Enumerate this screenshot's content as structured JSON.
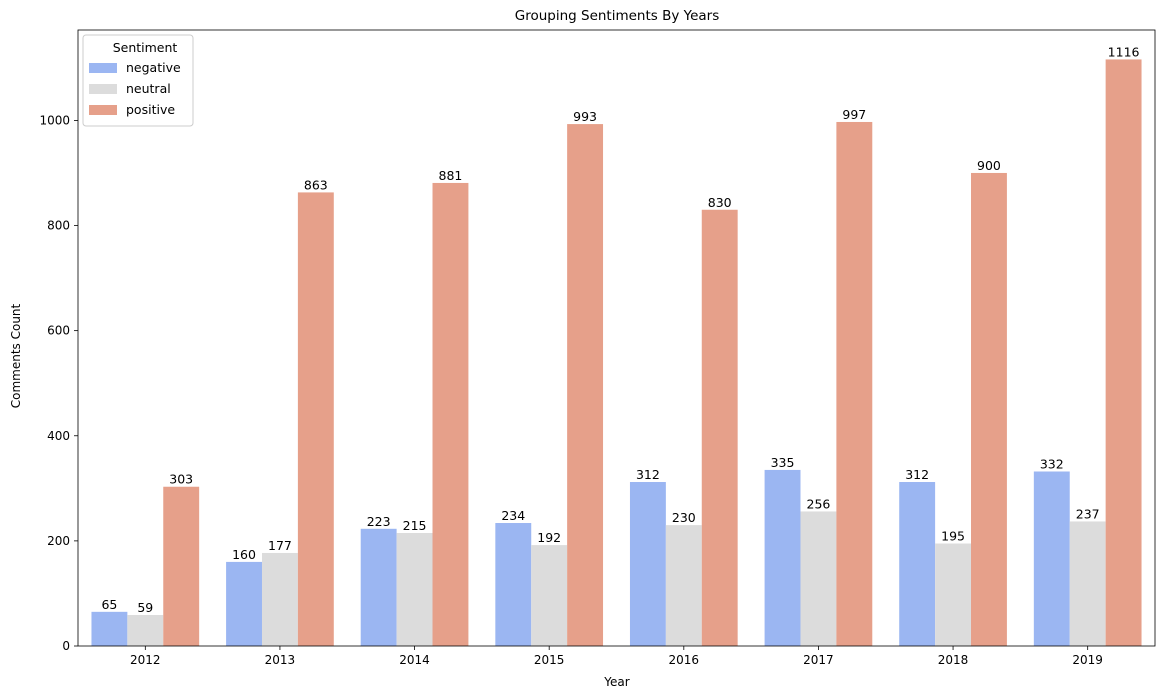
{
  "chart_data": {
    "type": "bar",
    "title": "Grouping Sentiments By Years",
    "xlabel": "Year",
    "ylabel": "Comments Count",
    "categories": [
      "2012",
      "2013",
      "2014",
      "2015",
      "2016",
      "2017",
      "2018",
      "2019"
    ],
    "series": [
      {
        "name": "negative",
        "color": "#9bb6f2",
        "values": [
          65,
          160,
          223,
          234,
          312,
          335,
          312,
          332
        ]
      },
      {
        "name": "neutral",
        "color": "#dcdcdc",
        "values": [
          59,
          177,
          215,
          192,
          230,
          256,
          195,
          237
        ]
      },
      {
        "name": "positive",
        "color": "#e6a08a",
        "values": [
          303,
          863,
          881,
          993,
          830,
          997,
          900,
          1116
        ]
      }
    ],
    "ylim": [
      0,
      1172
    ],
    "yticks": [
      0,
      200,
      400,
      600,
      800,
      1000
    ],
    "grid": false,
    "legend": {
      "title": "Sentiment",
      "position": "top-left"
    }
  }
}
